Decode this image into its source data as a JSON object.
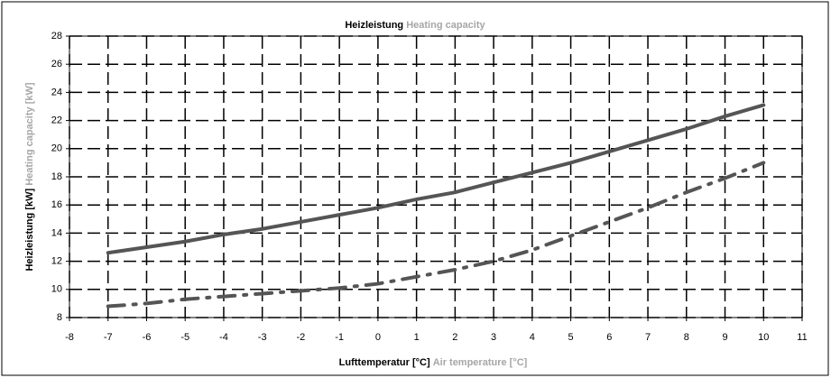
{
  "chart_data": {
    "type": "line",
    "title": {
      "de": "Heizleistung",
      "en": "Heating capacity"
    },
    "x_label": {
      "de": "Lufttemperatur [°C]",
      "en": "Air temperature [°C]"
    },
    "y_label": {
      "de": "Heizleistung [kW]",
      "en": "Heating capacity [kW]"
    },
    "x": [
      -7,
      -6,
      -5,
      -4,
      -3,
      -2,
      -1,
      0,
      1,
      2,
      3,
      4,
      5,
      6,
      7,
      8,
      9,
      10
    ],
    "series": [
      {
        "color": "#555555",
        "dash": "solid",
        "values": [
          12.6,
          13.0,
          13.4,
          13.9,
          14.3,
          14.8,
          15.3,
          15.8,
          16.4,
          16.9,
          17.6,
          18.3,
          19.0,
          19.8,
          20.6,
          21.4,
          22.3,
          23.1
        ]
      },
      {
        "color": "#555555",
        "dash": "dashdot",
        "values": [
          8.8,
          9.0,
          9.3,
          9.5,
          9.7,
          9.9,
          10.1,
          10.4,
          10.9,
          11.4,
          12.0,
          12.8,
          13.8,
          14.8,
          15.8,
          16.9,
          17.9,
          19.0
        ]
      }
    ],
    "xlim": [
      -8,
      11
    ],
    "xticks": [
      -8,
      -7,
      -6,
      -5,
      -4,
      -3,
      -2,
      -1,
      0,
      1,
      2,
      3,
      4,
      5,
      6,
      7,
      8,
      9,
      10,
      11
    ],
    "ylim": [
      8,
      28
    ],
    "yticks": [
      8,
      10,
      12,
      14,
      16,
      18,
      20,
      22,
      24,
      26,
      28
    ],
    "grid": true
  }
}
